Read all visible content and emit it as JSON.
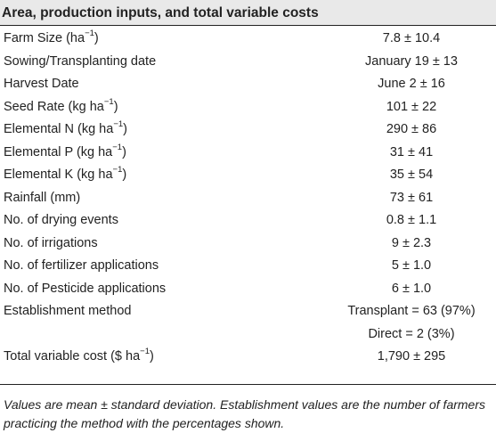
{
  "table": {
    "title": "Area, production inputs, and total variable costs",
    "rows": [
      {
        "label": "Farm Size (ha",
        "label_sup": "−1",
        "label_suffix": ")",
        "value": "7.8 ± 10.4"
      },
      {
        "label": "Sowing/Transplanting date",
        "label_sup": "",
        "label_suffix": "",
        "value": "January 19 ± 13"
      },
      {
        "label": "Harvest Date",
        "label_sup": "",
        "label_suffix": "",
        "value": "June 2 ± 16"
      },
      {
        "label": "Seed Rate (kg ha",
        "label_sup": "−1",
        "label_suffix": ")",
        "value": "101 ± 22"
      },
      {
        "label": "Elemental N (kg ha",
        "label_sup": "−1",
        "label_suffix": ")",
        "value": "290 ± 86"
      },
      {
        "label": "Elemental P (kg ha",
        "label_sup": "−1",
        "label_suffix": ")",
        "value": "31 ± 41"
      },
      {
        "label": "Elemental K (kg ha",
        "label_sup": "−1",
        "label_suffix": ")",
        "value": "35 ± 54"
      },
      {
        "label": "Rainfall (mm)",
        "label_sup": "",
        "label_suffix": "",
        "value": "73 ± 61"
      },
      {
        "label": "No. of drying events",
        "label_sup": "",
        "label_suffix": "",
        "value": "0.8 ± 1.1"
      },
      {
        "label": "No. of irrigations",
        "label_sup": "",
        "label_suffix": "",
        "value": "9 ± 2.3"
      },
      {
        "label": "No. of fertilizer applications",
        "label_sup": "",
        "label_suffix": "",
        "value": "5 ± 1.0"
      },
      {
        "label": "No. of Pesticide applications",
        "label_sup": "",
        "label_suffix": "",
        "value": "6 ± 1.0"
      },
      {
        "label": "Establishment method",
        "label_sup": "",
        "label_suffix": "",
        "value": "Transplant = 63 (97%)"
      },
      {
        "label": "",
        "label_sup": "",
        "label_suffix": "",
        "value": "Direct = 2 (3%)"
      },
      {
        "label": "Total variable cost ($ ha",
        "label_sup": "−1",
        "label_suffix": ")",
        "value": "1,790 ± 295"
      }
    ],
    "footnote": "Values are mean ± standard deviation. Establishment values are the number of farmers practicing the method with the percentages shown."
  },
  "colors": {
    "header_band": "#e9e9e9",
    "text": "#222222",
    "rule": "#222222"
  }
}
